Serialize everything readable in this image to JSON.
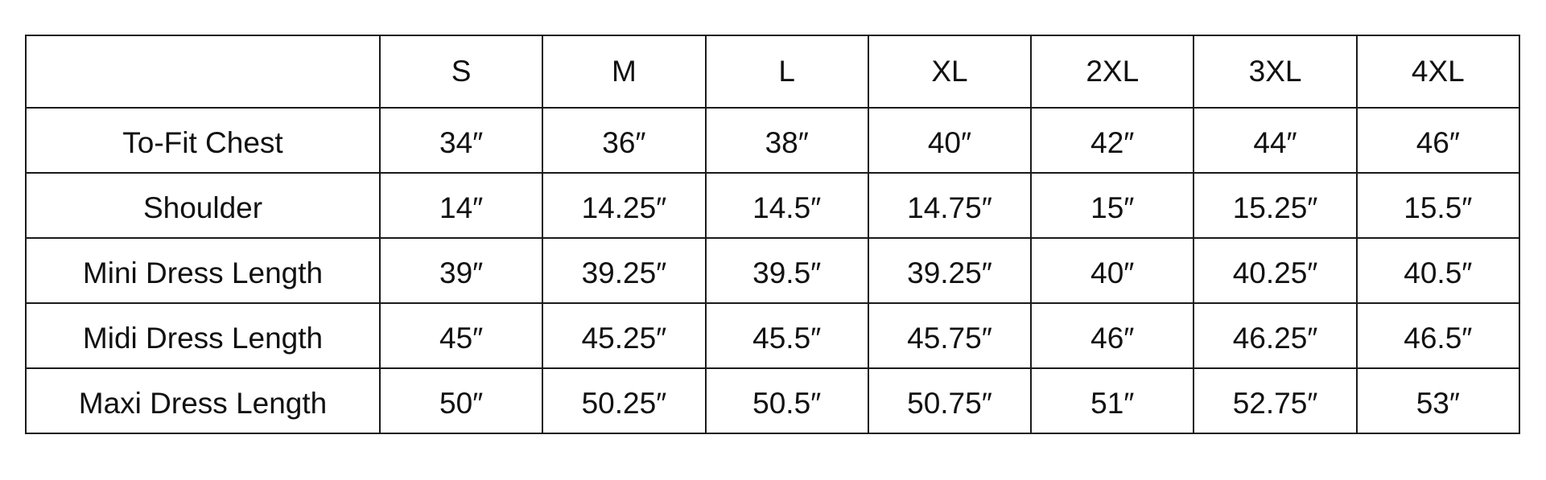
{
  "table": {
    "corner": "",
    "sizes": [
      "S",
      "M",
      "L",
      "XL",
      "2XL",
      "3XL",
      "4XL"
    ],
    "rows": [
      {
        "label": "To-Fit Chest",
        "values": [
          "34″",
          "36″",
          "38″",
          "40″",
          "42″",
          "44″",
          "46″"
        ]
      },
      {
        "label": "Shoulder",
        "values": [
          "14″",
          "14.25″",
          "14.5″",
          "14.75″",
          "15″",
          "15.25″",
          "15.5″"
        ]
      },
      {
        "label": "Mini Dress Length",
        "values": [
          "39″",
          "39.25″",
          "39.5″",
          "39.25″",
          "40″",
          "40.25″",
          "40.5″"
        ]
      },
      {
        "label": "Midi Dress Length",
        "values": [
          "45″",
          "45.25″",
          "45.5″",
          "45.75″",
          "46″",
          "46.25″",
          "46.5″"
        ]
      },
      {
        "label": "Maxi Dress Length",
        "values": [
          "50″",
          "50.25″",
          "50.5″",
          "50.75″",
          "51″",
          "52.75″",
          "53″"
        ]
      }
    ]
  }
}
